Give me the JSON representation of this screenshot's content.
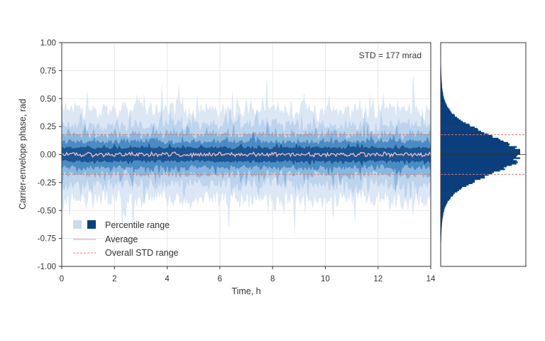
{
  "chart_data": {
    "type": "area",
    "title": "",
    "xlabel": "Time, h",
    "ylabel": "Carrier-envelope phase, rad",
    "xlim": [
      0,
      14
    ],
    "ylim": [
      -1.0,
      1.0
    ],
    "x_ticks": [
      "0",
      "2",
      "4",
      "6",
      "8",
      "10",
      "12",
      "14"
    ],
    "x_tick_values": [
      0,
      2,
      4,
      6,
      8,
      10,
      12,
      14
    ],
    "y_ticks": [
      "1.00",
      "0.75",
      "0.50",
      "0.25",
      "0.00",
      "-0.25",
      "-0.50",
      "-0.75",
      "-1.00"
    ],
    "y_tick_values": [
      1.0,
      0.75,
      0.5,
      0.25,
      0.0,
      -0.25,
      -0.5,
      -0.75,
      -1.0
    ],
    "grid": true,
    "annotation": "STD = 177 mrad",
    "std_value_rad": 0.177,
    "legend": {
      "placement": "bottom-left",
      "entries": [
        {
          "label": "Percentile range",
          "style": "swatch-pair"
        },
        {
          "label": "Average",
          "style": "solid-line"
        },
        {
          "label": "Overall STD range",
          "style": "dashed-line"
        }
      ]
    },
    "series": [
      {
        "name": "Percentile range",
        "role": "percentile-bands",
        "band_halfwidths_rad": [
          0.52,
          0.34,
          0.23,
          0.15,
          0.08
        ],
        "mean_rad": 0.0
      },
      {
        "name": "Average",
        "role": "mean-line",
        "mean_rad": 0.0,
        "fluctuation_rad": 0.02
      },
      {
        "name": "Overall STD range",
        "role": "std-lines",
        "values": [
          0.177,
          -0.177
        ]
      }
    ],
    "histogram": {
      "orientation": "horizontal",
      "ylim": [
        -1.0,
        1.0
      ],
      "mean_rad": 0.0,
      "std_rad": 0.177,
      "std_lines": [
        0.177,
        -0.177
      ]
    },
    "colors": {
      "band_lightest": "#dbe7f5",
      "band_light": "#b6d0ea",
      "band_mid": "#7aaed8",
      "band_dark": "#3a7fbe",
      "band_darkest": "#0f4c8c",
      "histogram": "#0a3f7d",
      "average": "#f4b6bf",
      "std_line": "#d9776a",
      "grid": "#e6e6e6",
      "axis": "#333333"
    }
  }
}
